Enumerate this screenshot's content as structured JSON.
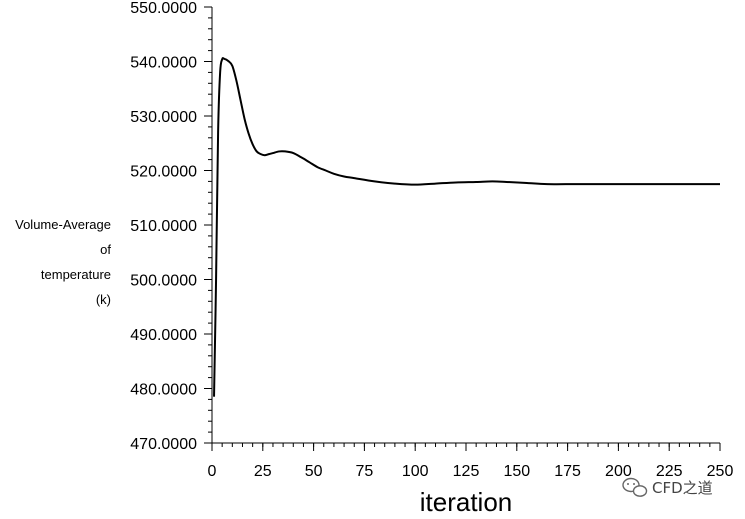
{
  "watermark": {
    "text": "CFD之道",
    "icon": "wechat-icon"
  },
  "chart_data": {
    "type": "line",
    "xlabel": "iteration",
    "ylabel_lines": [
      "Volume-Average",
      "of",
      "temperature",
      "(k)"
    ],
    "xlim": [
      0,
      250
    ],
    "ylim": [
      470,
      550
    ],
    "xticks": [
      0,
      25,
      50,
      75,
      100,
      125,
      150,
      175,
      200,
      225,
      250
    ],
    "yticks": [
      470,
      480,
      490,
      500,
      510,
      520,
      530,
      540,
      550
    ],
    "ytick_format_decimals": 4,
    "x_minor_step": 5,
    "y_minor_step": 2,
    "grid": false,
    "line_color": "#000000",
    "series": [
      {
        "x": [
          1,
          2,
          3,
          4,
          5,
          6,
          8,
          10,
          12,
          14,
          16,
          18,
          20,
          22,
          24,
          26,
          28,
          30,
          33,
          36,
          40,
          44,
          48,
          52,
          56,
          60,
          65,
          70,
          80,
          90,
          100,
          110,
          120,
          130,
          138,
          145,
          155,
          165,
          180,
          200,
          220,
          250
        ],
        "y": [
          478.5,
          500,
          527,
          538,
          540.4,
          540.5,
          540.1,
          539.2,
          536.5,
          533,
          529.5,
          526.8,
          524.8,
          523.5,
          523,
          522.8,
          523,
          523.2,
          523.5,
          523.5,
          523.2,
          522.4,
          521.5,
          520.6,
          520,
          519.4,
          518.9,
          518.6,
          518,
          517.6,
          517.4,
          517.6,
          517.8,
          517.9,
          518,
          517.9,
          517.7,
          517.5,
          517.5,
          517.5,
          517.5,
          517.5
        ]
      }
    ]
  }
}
